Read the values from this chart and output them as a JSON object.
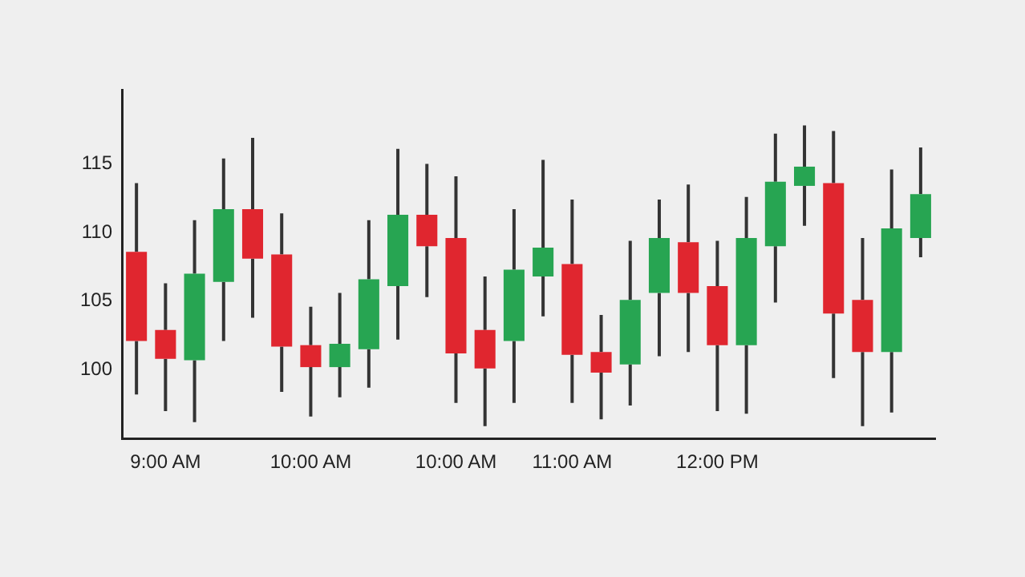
{
  "chart_data": {
    "type": "candlestick",
    "categories": [
      null,
      "9:00 AM",
      null,
      null,
      null,
      null,
      "10:00 AM",
      null,
      null,
      null,
      null,
      "10:00 AM",
      null,
      null,
      null,
      "11:00 AM",
      null,
      null,
      null,
      null,
      "12:00 PM",
      null,
      null,
      null,
      null,
      null,
      null,
      null
    ],
    "ohlc": [
      [
        108.6,
        113.6,
        98.2,
        102.1
      ],
      [
        102.9,
        106.3,
        97.0,
        100.8
      ],
      [
        100.7,
        110.9,
        96.2,
        107.0
      ],
      [
        106.4,
        115.4,
        102.1,
        111.7
      ],
      [
        111.7,
        116.9,
        103.8,
        108.1
      ],
      [
        108.4,
        111.4,
        98.4,
        101.7
      ],
      [
        101.8,
        104.6,
        96.6,
        100.2
      ],
      [
        100.2,
        105.6,
        98.0,
        101.9
      ],
      [
        101.5,
        110.9,
        98.7,
        106.6
      ],
      [
        106.1,
        116.1,
        102.2,
        111.3
      ],
      [
        111.3,
        115.0,
        105.3,
        109.0
      ],
      [
        109.6,
        114.1,
        97.6,
        101.2
      ],
      [
        102.9,
        106.8,
        95.9,
        100.1
      ],
      [
        102.1,
        111.7,
        97.6,
        107.3
      ],
      [
        106.8,
        115.3,
        103.9,
        108.9
      ],
      [
        107.7,
        112.4,
        97.6,
        101.1
      ],
      [
        101.3,
        104.0,
        96.4,
        99.8
      ],
      [
        100.4,
        109.4,
        97.4,
        105.1
      ],
      [
        105.6,
        112.4,
        101.0,
        109.6
      ],
      [
        109.3,
        113.5,
        101.3,
        105.6
      ],
      [
        106.1,
        109.4,
        97.0,
        101.8
      ],
      [
        101.8,
        112.6,
        96.8,
        109.6
      ],
      [
        109.0,
        117.2,
        104.9,
        113.7
      ],
      [
        113.4,
        117.8,
        110.5,
        114.8
      ],
      [
        113.6,
        117.4,
        99.4,
        104.1
      ],
      [
        105.1,
        109.6,
        95.9,
        101.3
      ],
      [
        101.3,
        114.6,
        96.9,
        110.3
      ],
      [
        109.6,
        116.2,
        108.2,
        112.8
      ]
    ],
    "colors": [
      "#e0262f",
      "#e0262f",
      "#27a552",
      "#27a552",
      "#e0262f",
      "#e0262f",
      "#e0262f",
      "#27a552",
      "#27a552",
      "#27a552",
      "#e0262f",
      "#e0262f",
      "#e0262f",
      "#27a552",
      "#27a552",
      "#e0262f",
      "#e0262f",
      "#27a552",
      "#27a552",
      "#e0262f",
      "#e0262f",
      "#27a552",
      "#27a552",
      "#27a552",
      "#e0262f",
      "#e0262f",
      "#27a552",
      "#27a552"
    ],
    "ylim": [
      95,
      120.4
    ],
    "yticks": [
      100,
      105,
      110,
      115
    ],
    "grid": false,
    "legend": false
  }
}
